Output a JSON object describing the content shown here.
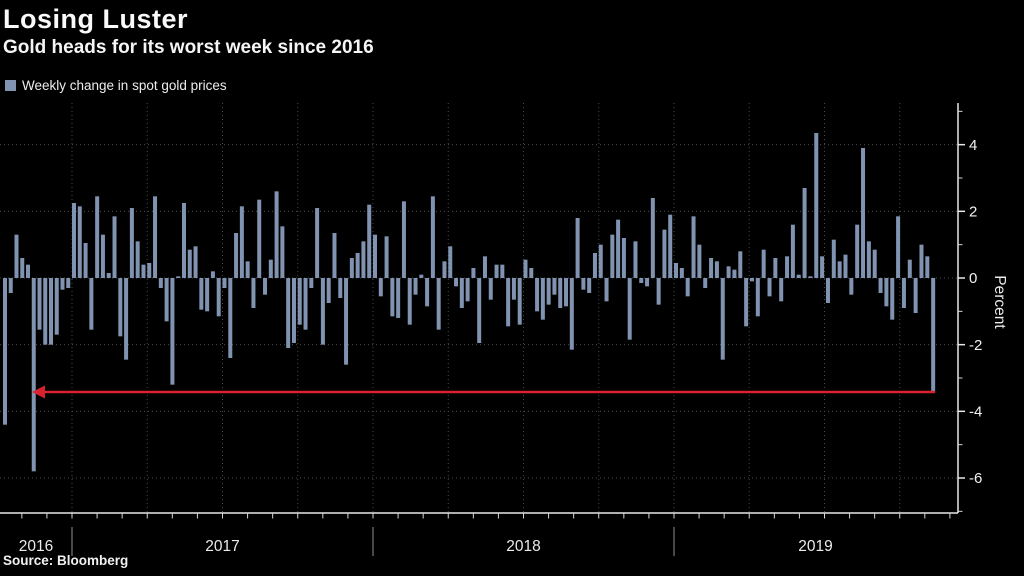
{
  "header": {
    "title": "Losing Luster",
    "subtitle": "Gold heads for its worst week since 2016"
  },
  "legend": {
    "label": "Weekly change in spot gold prices",
    "swatch_color": "#8093b0"
  },
  "axis": {
    "ylabel": "Percent"
  },
  "footer": {
    "source": "Source: Bloomberg"
  },
  "chart_data": {
    "type": "bar",
    "title": "Losing Luster",
    "subtitle": "Gold heads for its worst week since 2016",
    "legend_entries": [
      "Weekly change in spot gold prices"
    ],
    "ylabel": "Percent",
    "xlabel": "",
    "ylim": [
      -7.05,
      5.25
    ],
    "y_major_ticks": [
      4,
      2,
      0,
      -2,
      -4,
      -6
    ],
    "y_minor_ticks": [
      5,
      3,
      1,
      -1,
      -3,
      -5,
      -7
    ],
    "grid": true,
    "x_tick_years": [
      "2016",
      "2017",
      "2018",
      "2019"
    ],
    "colors": {
      "background": "#000000",
      "bar": "#8093b0",
      "axis": "#e8e8e8",
      "grid": "#4b4b4b",
      "text": "#f2f2f2",
      "arrow": "#d8232e"
    },
    "series": [
      {
        "year": "2016",
        "values": [
          -4.4,
          -0.45,
          1.3,
          0.6,
          0.4,
          -5.8,
          -1.55,
          -2.0,
          -2.0,
          -1.7,
          -0.35,
          -0.3
        ]
      },
      {
        "year": "2017",
        "values": [
          2.25,
          2.15,
          1.05,
          -1.55,
          2.45,
          1.3,
          0.15,
          1.85,
          -1.75,
          -2.45,
          2.1,
          1.1,
          0.4,
          0.45,
          2.45,
          -0.3,
          -1.3,
          -3.2,
          0.05,
          2.25,
          0.85,
          0.95,
          -0.95,
          -1.0,
          0.2,
          -1.15,
          -0.3,
          -2.4,
          1.35,
          2.15,
          0.5,
          -0.9,
          2.35,
          -0.5,
          0.55,
          2.6,
          1.55,
          -2.1,
          -1.95,
          -1.4,
          -1.55,
          -0.3,
          2.1,
          -2.0,
          -0.75,
          1.35,
          -0.6,
          -2.6,
          0.6,
          0.75,
          1.1,
          2.2
        ]
      },
      {
        "year": "2018",
        "values": [
          1.3,
          -0.55,
          1.25,
          -1.15,
          -1.2,
          2.3,
          -1.4,
          -0.5,
          0.1,
          -0.85,
          2.45,
          -1.55,
          0.5,
          0.95,
          -0.25,
          -0.9,
          -0.7,
          0.3,
          -1.95,
          0.65,
          -0.65,
          0.4,
          0.4,
          -1.45,
          -0.65,
          -1.4,
          0.55,
          0.3,
          -1.0,
          -1.25,
          -0.8,
          -0.5,
          -0.9,
          -0.85,
          -2.15,
          1.8,
          -0.35,
          -0.45,
          0.75,
          1.0,
          -0.7,
          1.3,
          1.75,
          1.2,
          -1.85,
          1.1,
          -0.15,
          -0.25,
          2.4,
          -0.8,
          1.45,
          1.9
        ]
      },
      {
        "year": "2019",
        "values": [
          0.45,
          0.3,
          -0.55,
          1.85,
          1.0,
          -0.3,
          0.6,
          0.5,
          -2.45,
          0.35,
          0.25,
          0.8,
          -1.45,
          -0.1,
          -1.15,
          0.85,
          -0.55,
          0.6,
          -0.7,
          0.65,
          1.6,
          0.1,
          2.7,
          0.05,
          4.35,
          0.65,
          -0.75,
          1.15,
          0.5,
          0.7,
          -0.5,
          1.6,
          3.9,
          1.1,
          0.85,
          -0.45,
          -0.85,
          -1.25,
          1.85,
          -0.9,
          0.55,
          -1.05,
          1.0,
          0.65,
          -3.4
        ]
      }
    ],
    "annotation": {
      "type": "arrow",
      "description": "red arrow from final bar pointing left to comparable 2016 decline",
      "y_value": -3.42,
      "direction": "left"
    }
  }
}
